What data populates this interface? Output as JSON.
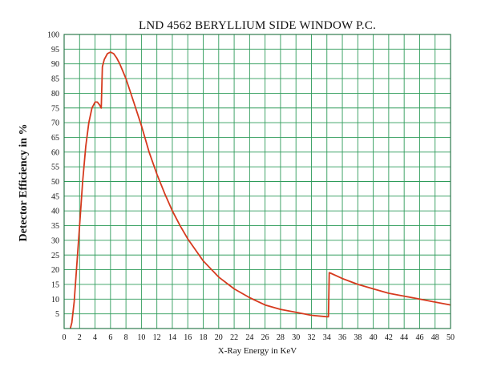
{
  "chart_data": {
    "type": "line",
    "title": "LND 4562 BERYLLIUM SIDE WINDOW P.C.",
    "xlabel": "X-Ray Energy in KeV",
    "ylabel": "Detector Efficiency in %",
    "xlim": [
      0,
      50
    ],
    "ylim": [
      0,
      100
    ],
    "x_ticks": [
      0,
      2,
      4,
      6,
      8,
      10,
      12,
      14,
      16,
      18,
      20,
      22,
      24,
      26,
      28,
      30,
      32,
      34,
      36,
      38,
      40,
      42,
      44,
      46,
      48,
      50
    ],
    "y_ticks": [
      5,
      10,
      15,
      20,
      25,
      30,
      35,
      40,
      45,
      50,
      55,
      60,
      65,
      70,
      75,
      80,
      85,
      90,
      95,
      100
    ],
    "grid": true,
    "series": [
      {
        "color": "#d63a1e",
        "x": [
          0.8,
          1.0,
          1.3,
          1.6,
          2.0,
          2.4,
          2.8,
          3.2,
          3.6,
          4.0,
          4.3,
          4.6,
          4.8,
          4.95,
          5.2,
          5.6,
          6.0,
          6.4,
          6.8,
          7.2,
          8.0,
          9.0,
          10.0,
          11.0,
          12.0,
          13.0,
          14.0,
          15.0,
          16.0,
          18.0,
          20.0,
          22.0,
          24.0,
          26.0,
          28.0,
          30.0,
          32.0,
          34.0,
          34.2,
          34.3,
          34.5,
          36.0,
          38.0,
          40.0,
          42.0,
          44.0,
          46.0,
          48.0,
          50.0
        ],
        "y": [
          0,
          2,
          9,
          20,
          35,
          50,
          62,
          70,
          75,
          77,
          77,
          76,
          75,
          89,
          91.5,
          93.5,
          94,
          93.5,
          92,
          90,
          85,
          77,
          69,
          60,
          52.5,
          46,
          40,
          35,
          30.5,
          23,
          17.5,
          13.5,
          10.5,
          8,
          6.5,
          5.5,
          4.5,
          4,
          4,
          19,
          18.8,
          17,
          15,
          13.5,
          12,
          11,
          10,
          9,
          8
        ]
      }
    ]
  }
}
